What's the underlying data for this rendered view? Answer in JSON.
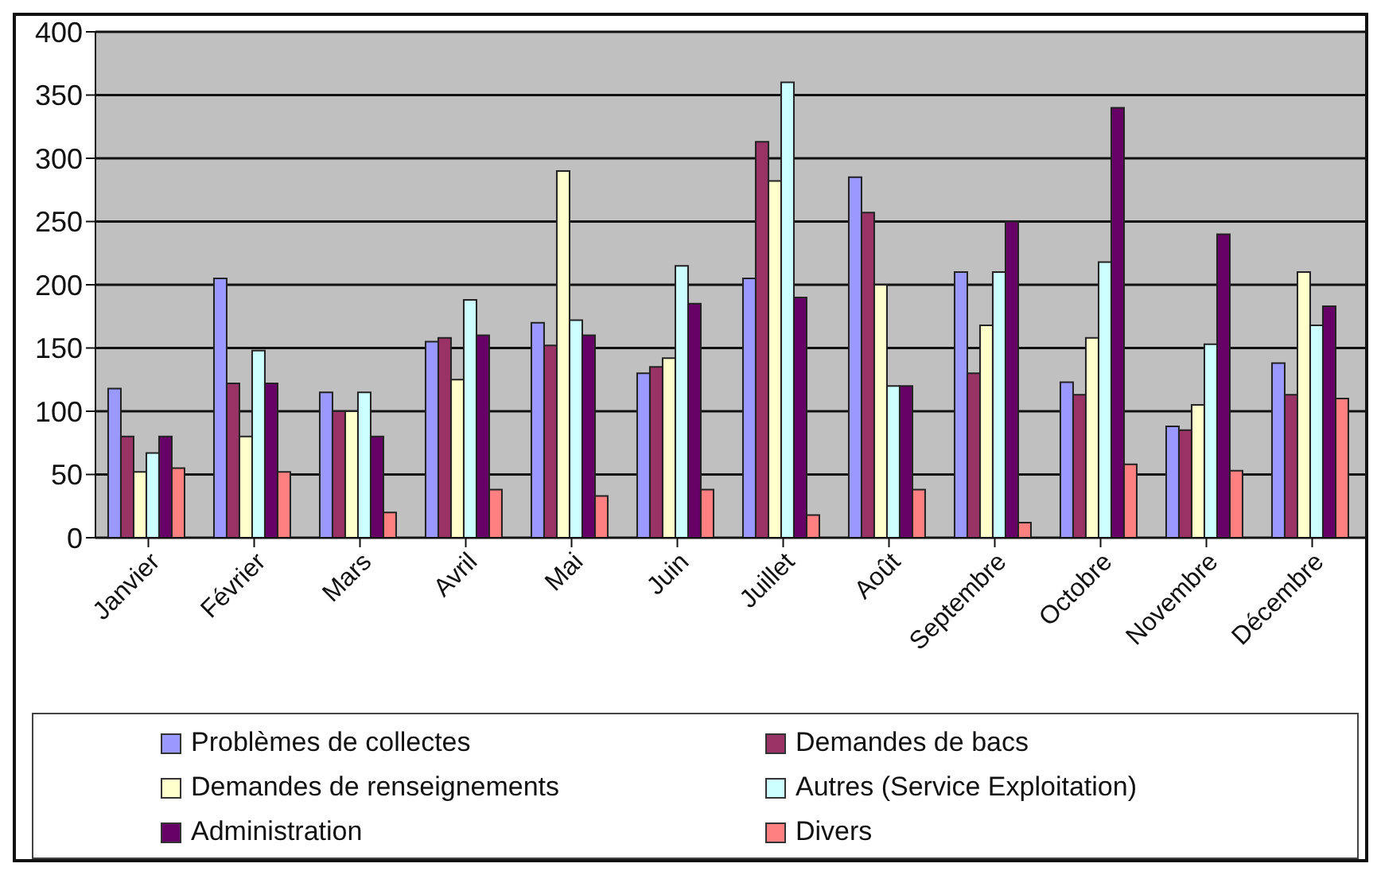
{
  "chart_data": {
    "type": "bar",
    "categories": [
      "Janvier",
      "Février",
      "Mars",
      "Avril",
      "Mai",
      "Juin",
      "Juillet",
      "Août",
      "Septembre",
      "Octobre",
      "Novembre",
      "Décembre"
    ],
    "series": [
      {
        "name": "Problèmes de collectes",
        "color": "#9999ff",
        "values": [
          118,
          205,
          115,
          155,
          170,
          130,
          205,
          285,
          210,
          123,
          88,
          138
        ]
      },
      {
        "name": "Demandes de bacs",
        "color": "#993366",
        "values": [
          80,
          122,
          100,
          158,
          152,
          135,
          313,
          257,
          130,
          113,
          85,
          113
        ]
      },
      {
        "name": "Demandes de renseignements",
        "color": "#ffffcc",
        "values": [
          52,
          80,
          100,
          125,
          290,
          142,
          282,
          200,
          168,
          158,
          105,
          210
        ]
      },
      {
        "name": "Autres (Service Exploitation)",
        "color": "#ccffff",
        "values": [
          67,
          148,
          115,
          188,
          172,
          215,
          360,
          120,
          210,
          218,
          153,
          168
        ]
      },
      {
        "name": "Administration",
        "color": "#660066",
        "values": [
          80,
          122,
          80,
          160,
          160,
          185,
          190,
          120,
          250,
          340,
          240,
          183
        ]
      },
      {
        "name": "Divers",
        "color": "#ff8080",
        "values": [
          55,
          52,
          20,
          38,
          33,
          38,
          18,
          38,
          12,
          58,
          53,
          110
        ]
      }
    ],
    "ylim": [
      0,
      400
    ],
    "yticks": [
      0,
      50,
      100,
      150,
      200,
      250,
      300,
      350,
      400
    ],
    "grid": "y",
    "legend": "bottom"
  }
}
